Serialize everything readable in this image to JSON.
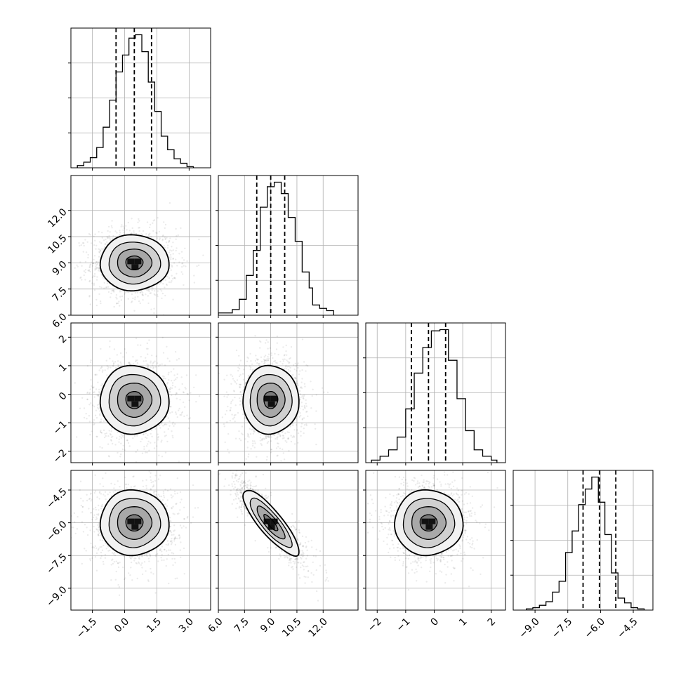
{
  "chart_data": {
    "type": "corner",
    "parameters": [
      {
        "id": "p0",
        "range": [
          -2.5,
          4.0
        ],
        "ticks": [
          "−1.5",
          "0.0",
          "1.5",
          "3.0"
        ],
        "tick_values": [
          -1.5,
          0.0,
          1.5,
          3.0
        ],
        "quantiles": [
          -0.4,
          0.45,
          1.25
        ]
      },
      {
        "id": "p1",
        "range": [
          6.0,
          14.0
        ],
        "ticks": [
          "6.0",
          "7.5",
          "9.0",
          "10.5",
          "12.0"
        ],
        "tick_values": [
          6.0,
          7.5,
          9.0,
          10.5,
          12.0
        ],
        "quantiles": [
          8.2,
          9.0,
          9.8
        ]
      },
      {
        "id": "p2",
        "range": [
          -2.4,
          2.5
        ],
        "ticks": [
          "−2",
          "−1",
          "0",
          "1",
          "2"
        ],
        "tick_values": [
          -2,
          -1,
          0,
          1,
          2
        ],
        "quantiles": [
          -0.8,
          -0.2,
          0.4
        ]
      },
      {
        "id": "p3",
        "range": [
          -10.0,
          -3.6
        ],
        "ticks": [
          "−9.0",
          "−7.5",
          "−6.0",
          "−4.5"
        ],
        "tick_values": [
          -9.0,
          -7.5,
          -6.0,
          -4.5
        ],
        "quantiles": [
          -6.8,
          -6.05,
          -5.3
        ]
      }
    ],
    "histograms": [
      {
        "param": 0,
        "bin_edges": [
          -2.2,
          -1.9,
          -1.6,
          -1.3,
          -1.0,
          -0.7,
          -0.4,
          -0.1,
          0.2,
          0.5,
          0.8,
          1.1,
          1.4,
          1.7,
          2.0,
          2.3,
          2.6,
          2.9,
          3.2
        ],
        "counts": [
          2,
          5,
          9,
          18,
          36,
          60,
          85,
          100,
          115,
          118,
          103,
          76,
          50,
          28,
          16,
          8,
          4,
          1
        ]
      },
      {
        "param": 1,
        "bin_edges": [
          6.0,
          6.4,
          6.8,
          7.2,
          7.6,
          8.0,
          8.4,
          8.8,
          9.2,
          9.6,
          10.0,
          10.4,
          10.8,
          11.2,
          11.4,
          11.8,
          12.2,
          12.6
        ],
        "counts": [
          2,
          2,
          5,
          14,
          35,
          57,
          95,
          113,
          117,
          107,
          86,
          65,
          38,
          24,
          9,
          6,
          4
        ]
      },
      {
        "param": 2,
        "bin_edges": [
          -2.2,
          -1.9,
          -1.6,
          -1.3,
          -1.0,
          -0.7,
          -0.4,
          -0.1,
          0.2,
          0.5,
          0.8,
          1.1,
          1.4,
          1.7,
          2.0,
          2.2
        ],
        "counts": [
          2,
          5,
          10,
          20,
          42,
          70,
          90,
          103,
          104,
          80,
          50,
          25,
          10,
          5,
          2
        ]
      },
      {
        "param": 3,
        "bin_edges": [
          -9.4,
          -9.1,
          -8.8,
          -8.5,
          -8.2,
          -7.9,
          -7.6,
          -7.3,
          -7.0,
          -6.7,
          -6.4,
          -6.1,
          -5.8,
          -5.5,
          -5.2,
          -4.9,
          -4.6,
          -4.3,
          -4.0
        ],
        "counts": [
          1,
          2,
          4,
          7,
          15,
          24,
          48,
          66,
          88,
          101,
          111,
          90,
          63,
          31,
          10,
          6,
          2,
          1
        ]
      }
    ],
    "joint": [
      {
        "x": 0,
        "y": 1,
        "center": [
          0.45,
          9.0
        ],
        "sigma": [
          0.8,
          0.8
        ],
        "rho": 0.0
      },
      {
        "x": 0,
        "y": 2,
        "center": [
          0.45,
          -0.2
        ],
        "sigma": [
          0.8,
          0.6
        ],
        "rho": 0.0
      },
      {
        "x": 1,
        "y": 2,
        "center": [
          9.0,
          -0.2
        ],
        "sigma": [
          0.8,
          0.6
        ],
        "rho": 0.0
      },
      {
        "x": 0,
        "y": 3,
        "center": [
          0.45,
          -6.0
        ],
        "sigma": [
          0.8,
          0.75
        ],
        "rho": 0.0
      },
      {
        "x": 1,
        "y": 3,
        "center": [
          9.0,
          -6.0
        ],
        "sigma": [
          0.8,
          0.75
        ],
        "rho": -0.85
      },
      {
        "x": 2,
        "y": 3,
        "center": [
          -0.2,
          -6.0
        ],
        "sigma": [
          0.6,
          0.75
        ],
        "rho": 0.0
      }
    ],
    "contour_levels_sigma": [
      0.5,
      1.0,
      1.5,
      2.0
    ],
    "grid": true,
    "colors": {
      "line": "#000000",
      "fill_dark": "#000000",
      "fill_light": "#ffffff",
      "points": "#000000"
    }
  }
}
